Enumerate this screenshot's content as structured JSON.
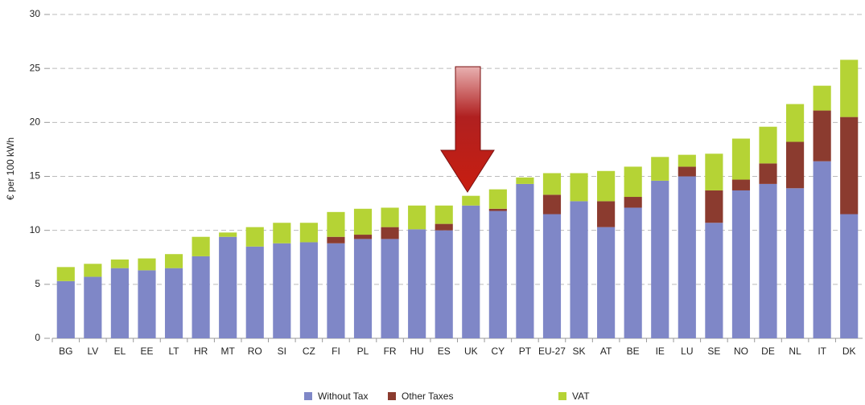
{
  "chart_data": {
    "type": "stacked_bar",
    "ylabel": "€ per 100 kWh",
    "categories": [
      "BG",
      "LV",
      "EL",
      "EE",
      "LT",
      "HR",
      "MT",
      "RO",
      "SI",
      "CZ",
      "FI",
      "PL",
      "FR",
      "HU",
      "ES",
      "UK",
      "CY",
      "PT",
      "EU-27",
      "SK",
      "AT",
      "BE",
      "IE",
      "LU",
      "SE",
      "NO",
      "DE",
      "NL",
      "IT",
      "DK"
    ],
    "series": [
      {
        "name": "Without Tax",
        "color": "#7f87c7",
        "values": [
          5.3,
          5.7,
          6.5,
          6.3,
          6.5,
          7.6,
          9.4,
          8.5,
          8.8,
          8.9,
          8.8,
          9.2,
          9.2,
          10.1,
          10.0,
          12.3,
          11.8,
          14.3,
          11.5,
          12.7,
          10.3,
          12.1,
          14.6,
          15.0,
          10.7,
          13.7,
          14.3,
          13.9,
          16.4,
          11.5
        ]
      },
      {
        "name": "Other Taxes",
        "color": "#8b3b2f",
        "values": [
          0,
          0,
          0,
          0,
          0,
          0,
          0,
          0,
          0,
          0,
          0.6,
          0.4,
          1.1,
          0,
          0.6,
          0,
          0.2,
          0,
          1.8,
          0,
          2.4,
          1.0,
          0,
          0.9,
          3.0,
          1.0,
          1.9,
          4.3,
          4.7,
          9.0
        ]
      },
      {
        "name": "VAT",
        "color": "#b5d335",
        "values": [
          1.3,
          1.2,
          0.8,
          1.1,
          1.3,
          1.8,
          0.4,
          1.8,
          1.9,
          1.8,
          2.3,
          2.4,
          1.8,
          2.2,
          1.7,
          0.9,
          1.8,
          0.6,
          2.0,
          2.6,
          2.8,
          2.8,
          2.2,
          1.1,
          3.4,
          3.8,
          3.4,
          3.5,
          2.3,
          5.3
        ]
      }
    ],
    "ylim": [
      0,
      30
    ],
    "yticks": [
      0,
      5,
      10,
      15,
      20,
      25,
      30
    ],
    "grid": true
  }
}
